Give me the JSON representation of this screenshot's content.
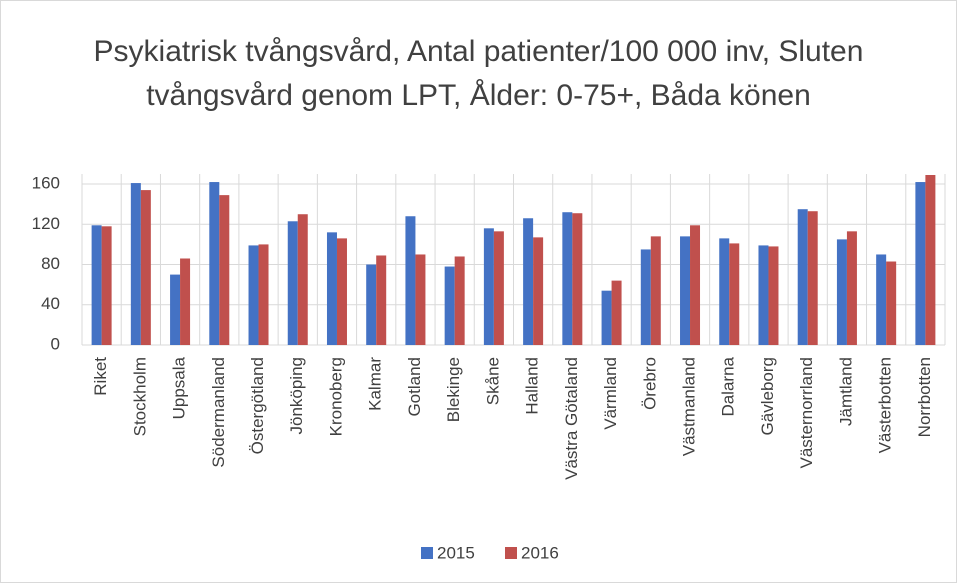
{
  "chart_data": {
    "type": "bar",
    "title": "Psykiatrisk tvångsvård, Antal patienter/100 000 inv, Sluten tvångsvård genom LPT, Ålder: 0-75+, Båda könen",
    "categories": [
      "Riket",
      "Stockholm",
      "Uppsala",
      "Södermanland",
      "Östergötland",
      "Jönköping",
      "Kronoberg",
      "Kalmar",
      "Gotland",
      "Blekinge",
      "Skåne",
      "Halland",
      "Västra Götaland",
      "Värmland",
      "Örebro",
      "Västmanland",
      "Dalarna",
      "Gävleborg",
      "Västernorrland",
      "Jämtland",
      "Västerbotten",
      "Norrbotten"
    ],
    "series": [
      {
        "name": "2015",
        "color": "#4472c4",
        "values": [
          119,
          161,
          70,
          162,
          99,
          123,
          112,
          80,
          128,
          78,
          116,
          126,
          132,
          54,
          95,
          108,
          106,
          99,
          135,
          105,
          90,
          162
        ]
      },
      {
        "name": "2016",
        "color": "#c0504d",
        "values": [
          118,
          154,
          86,
          149,
          100,
          130,
          106,
          89,
          90,
          88,
          113,
          107,
          131,
          64,
          108,
          119,
          101,
          98,
          133,
          113,
          83,
          169
        ]
      }
    ],
    "ylim": [
      0,
      170
    ],
    "yticks": [
      0,
      40,
      80,
      120,
      160
    ],
    "grid": true,
    "legend": "bottom"
  }
}
